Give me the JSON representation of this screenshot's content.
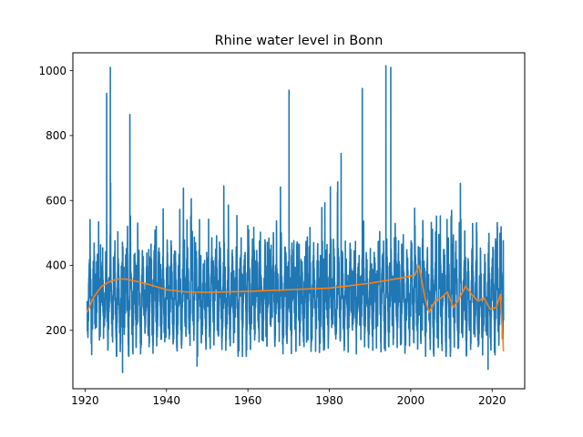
{
  "chart_data": {
    "type": "line",
    "title": "Rhine water level in Bonn",
    "xlabel": "",
    "ylabel": "",
    "xlim": [
      1917,
      2028
    ],
    "ylim": [
      20,
      1055
    ],
    "x_ticks": [
      1920,
      1940,
      1960,
      1980,
      2000,
      2020
    ],
    "y_ticks": [
      200,
      400,
      600,
      800,
      1000
    ],
    "x_range": [
      1920.5,
      2022.8
    ],
    "grid": false,
    "legend": "none",
    "series": [
      {
        "type": "line",
        "color": "#1f77b4",
        "approximate_extremes": [
          {
            "x": 1926.2,
            "y": 1010
          },
          {
            "x": 1925.3,
            "y": 930
          },
          {
            "x": 1929.2,
            "y": 70
          },
          {
            "x": 1931.0,
            "y": 865
          },
          {
            "x": 1947.5,
            "y": 90
          },
          {
            "x": 1970.1,
            "y": 940
          },
          {
            "x": 1982.9,
            "y": 745
          },
          {
            "x": 1988.1,
            "y": 945
          },
          {
            "x": 1993.9,
            "y": 1015
          },
          {
            "x": 1995.1,
            "y": 1010
          },
          {
            "x": 2019.0,
            "y": 80
          }
        ],
        "typical_range": [
          150,
          700
        ]
      },
      {
        "type": "line",
        "color": "#ff7f0e",
        "x": [
          1920.5,
          1922,
          1924,
          1926,
          1928,
          1930,
          1933,
          1936,
          1940,
          1945,
          1950,
          1960,
          1970,
          1980,
          1990,
          1998,
          2001,
          2002,
          2003.5,
          2004.5,
          2006,
          2007.5,
          2009,
          2010.5,
          2012,
          2013.5,
          2015,
          2016.5,
          2018,
          2019.5,
          2021,
          2022,
          2022.8
        ],
        "y": [
          255,
          300,
          335,
          350,
          358,
          358,
          350,
          340,
          325,
          318,
          317,
          320,
          325,
          330,
          345,
          362,
          370,
          400,
          300,
          255,
          290,
          300,
          318,
          270,
          300,
          336,
          310,
          290,
          300,
          265,
          270,
          310,
          135
        ]
      }
    ]
  }
}
